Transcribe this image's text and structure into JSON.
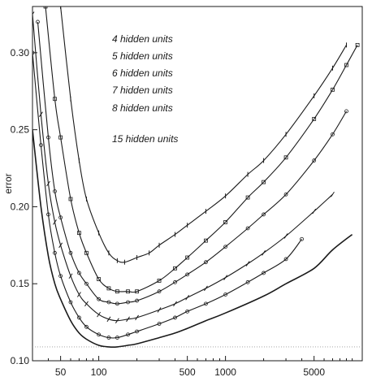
{
  "chart_data": {
    "type": "line",
    "title": "",
    "xlabel": "",
    "ylabel": "error",
    "x_scale": "log",
    "xlim": [
      30,
      12000
    ],
    "ylim": [
      0.1,
      0.33
    ],
    "x_ticks": [
      50,
      100,
      500,
      1000,
      5000
    ],
    "y_ticks": [
      0.1,
      0.15,
      0.2,
      0.25,
      0.3
    ],
    "y_tick_labels": [
      "0.10",
      "0.15",
      "0.20",
      "0.25",
      "0.30"
    ],
    "grid": false,
    "legend_position": "top-center",
    "reference_line": 0.109,
    "series": [
      {
        "name": "4 hidden units",
        "x": [
          50,
          60,
          70,
          80,
          100,
          120,
          140,
          160,
          200,
          250,
          300,
          400,
          500,
          700,
          1000,
          1500,
          2000,
          3000,
          5000,
          7000,
          9000
        ],
        "y": [
          0.33,
          0.27,
          0.23,
          0.205,
          0.183,
          0.17,
          0.165,
          0.164,
          0.167,
          0.17,
          0.175,
          0.182,
          0.188,
          0.197,
          0.207,
          0.221,
          0.23,
          0.247,
          0.272,
          0.29,
          0.305
        ]
      },
      {
        "name": "5 hidden units",
        "x": [
          38,
          45,
          50,
          60,
          70,
          80,
          100,
          120,
          140,
          170,
          200,
          300,
          400,
          500,
          700,
          1000,
          1500,
          2000,
          3000,
          5000,
          7000,
          9000,
          11000
        ],
        "y": [
          0.33,
          0.27,
          0.245,
          0.205,
          0.183,
          0.17,
          0.153,
          0.147,
          0.145,
          0.145,
          0.145,
          0.152,
          0.16,
          0.167,
          0.178,
          0.19,
          0.206,
          0.216,
          0.232,
          0.257,
          0.276,
          0.292,
          0.305
        ]
      },
      {
        "name": "6 hidden units",
        "x": [
          33,
          40,
          45,
          50,
          60,
          70,
          80,
          100,
          120,
          140,
          170,
          200,
          300,
          400,
          500,
          700,
          1000,
          1500,
          2000,
          3000,
          5000,
          7000,
          9000
        ],
        "y": [
          0.32,
          0.245,
          0.21,
          0.193,
          0.17,
          0.157,
          0.15,
          0.14,
          0.138,
          0.137,
          0.138,
          0.139,
          0.145,
          0.151,
          0.156,
          0.164,
          0.174,
          0.186,
          0.195,
          0.208,
          0.23,
          0.247,
          0.262
        ]
      },
      {
        "name": "7 hidden units",
        "x": [
          30,
          35,
          40,
          45,
          50,
          60,
          70,
          80,
          100,
          120,
          140,
          170,
          200,
          300,
          400,
          500,
          700,
          1000,
          1500,
          2000,
          3000,
          5000,
          7000
        ],
        "y": [
          0.325,
          0.26,
          0.215,
          0.19,
          0.175,
          0.155,
          0.143,
          0.137,
          0.13,
          0.127,
          0.126,
          0.127,
          0.128,
          0.133,
          0.137,
          0.141,
          0.147,
          0.154,
          0.163,
          0.17,
          0.181,
          0.197,
          0.208
        ]
      },
      {
        "name": "8 hidden units",
        "x": [
          30,
          35,
          40,
          45,
          50,
          60,
          70,
          80,
          100,
          120,
          140,
          170,
          200,
          300,
          400,
          500,
          700,
          1000,
          1500,
          2000,
          3000,
          4000
        ],
        "y": [
          0.3,
          0.24,
          0.195,
          0.17,
          0.155,
          0.138,
          0.128,
          0.122,
          0.117,
          0.115,
          0.115,
          0.117,
          0.119,
          0.124,
          0.128,
          0.132,
          0.137,
          0.143,
          0.151,
          0.157,
          0.166,
          0.179
        ]
      },
      {
        "name": "15 hidden units",
        "x": [
          30,
          35,
          40,
          45,
          50,
          60,
          70,
          80,
          100,
          120,
          140,
          170,
          200,
          300,
          400,
          500,
          700,
          1000,
          2000,
          3000,
          5000,
          7000,
          10000
        ],
        "y": [
          0.25,
          0.2,
          0.168,
          0.15,
          0.14,
          0.126,
          0.118,
          0.114,
          0.11,
          0.109,
          0.109,
          0.11,
          0.111,
          0.115,
          0.118,
          0.121,
          0.126,
          0.131,
          0.142,
          0.15,
          0.16,
          0.172,
          0.182
        ]
      }
    ]
  },
  "style": {
    "ink": "#1a1a1a",
    "reference_line_color": "#9a9a9a",
    "series_markers": [
      "bar",
      "square",
      "circle",
      "slash",
      "circle",
      "none"
    ]
  }
}
